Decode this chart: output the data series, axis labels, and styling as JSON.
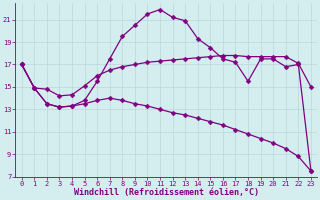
{
  "xlabel": "Windchill (Refroidissement éolien,°C)",
  "background_color": "#d4eef0",
  "line_color": "#800080",
  "grid_color": "#b8d8dc",
  "xlim": [
    -0.5,
    23.5
  ],
  "ylim": [
    7,
    22.5
  ],
  "yticks": [
    7,
    9,
    11,
    13,
    15,
    17,
    19,
    21
  ],
  "xticks": [
    0,
    1,
    2,
    3,
    4,
    5,
    6,
    7,
    8,
    9,
    10,
    11,
    12,
    13,
    14,
    15,
    16,
    17,
    18,
    19,
    20,
    21,
    22,
    23
  ],
  "line1_x": [
    0,
    1,
    2,
    3,
    4,
    5,
    6,
    7,
    8,
    9,
    10,
    11,
    12,
    13,
    14,
    15,
    16,
    17,
    18,
    19,
    20,
    21,
    22,
    23
  ],
  "line1_y": [
    17.0,
    14.9,
    14.8,
    14.2,
    14.3,
    15.1,
    16.0,
    16.5,
    16.8,
    17.0,
    17.2,
    17.3,
    17.4,
    17.5,
    17.6,
    17.7,
    17.8,
    17.8,
    17.7,
    17.7,
    17.7,
    17.7,
    17.1,
    15.0
  ],
  "line2_x": [
    0,
    1,
    2,
    3,
    4,
    5,
    6,
    7,
    8,
    9,
    10,
    11,
    12,
    13,
    14,
    15,
    16,
    17,
    18,
    19,
    20,
    21,
    22,
    23
  ],
  "line2_y": [
    17.0,
    14.9,
    13.5,
    13.2,
    13.3,
    13.8,
    15.5,
    17.5,
    19.5,
    20.5,
    21.5,
    21.9,
    21.2,
    20.9,
    19.3,
    18.5,
    17.5,
    17.2,
    15.5,
    17.5,
    17.5,
    16.8,
    17.0,
    7.5
  ],
  "line3_x": [
    0,
    1,
    2,
    3,
    4,
    5,
    6,
    7,
    8,
    9,
    10,
    11,
    12,
    13,
    14,
    15,
    16,
    17,
    18,
    19,
    20,
    21,
    22,
    23
  ],
  "line3_y": [
    17.0,
    14.9,
    13.5,
    13.2,
    13.3,
    13.5,
    13.8,
    14.0,
    13.8,
    13.5,
    13.3,
    13.0,
    12.7,
    12.5,
    12.2,
    11.9,
    11.6,
    11.2,
    10.8,
    10.4,
    10.0,
    9.5,
    8.8,
    7.5
  ],
  "marker_size": 2.5,
  "linewidth": 0.9,
  "tick_fontsize": 5.0,
  "xlabel_fontsize": 6.0
}
